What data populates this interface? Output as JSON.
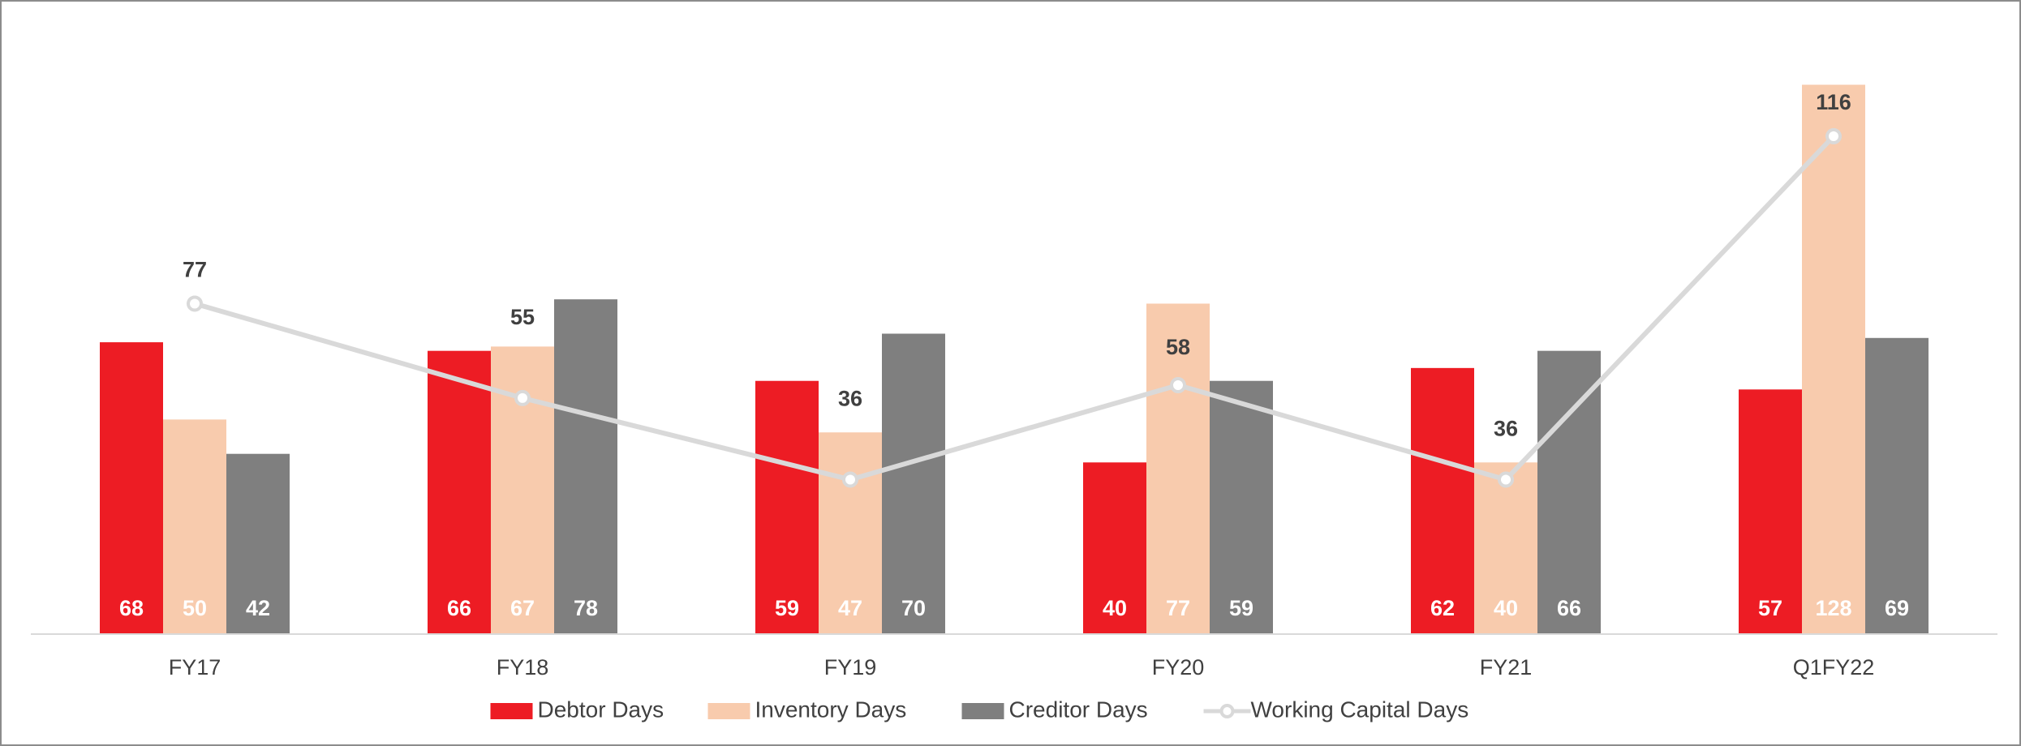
{
  "chart_data": {
    "type": "bar",
    "categories": [
      "FY17",
      "FY18",
      "FY19",
      "FY20",
      "FY21",
      "Q1FY22"
    ],
    "ylim": [
      0,
      140
    ],
    "legend": "bottom",
    "series": [
      {
        "name": "Debtor Days",
        "color": "#ed1c24",
        "values": [
          68,
          66,
          59,
          40,
          62,
          57
        ]
      },
      {
        "name": "Inventory Days",
        "color": "#f8cbad",
        "values": [
          50,
          67,
          47,
          77,
          40,
          128
        ]
      },
      {
        "name": "Creditor Days",
        "color": "#7f7f7f",
        "values": [
          42,
          78,
          70,
          59,
          66,
          69
        ]
      },
      {
        "name": "Working Capital Days",
        "type": "line",
        "color": "#d9d9d9",
        "values": [
          77,
          55,
          36,
          58,
          36,
          116
        ]
      }
    ]
  }
}
